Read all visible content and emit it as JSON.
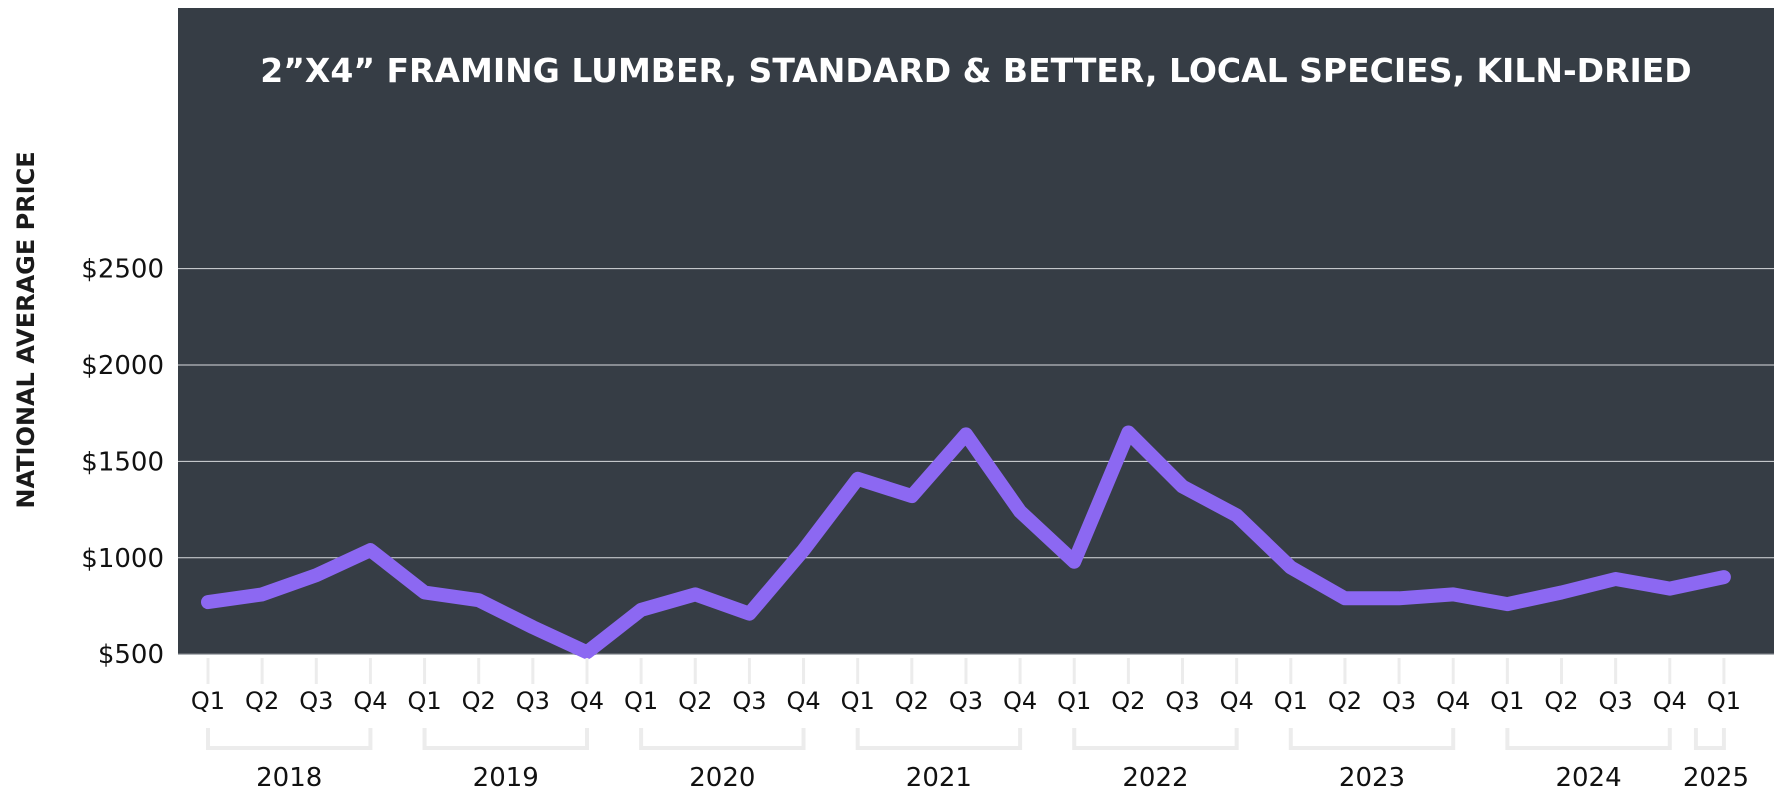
{
  "chart_data": {
    "type": "line",
    "title": "2”X4” FRAMING LUMBER, STANDARD & BETTER, LOCAL SPECIES, KILN-DRIED",
    "xlabel": "",
    "ylabel": "NATIONAL AVERAGE PRICE",
    "ylim": [
      0,
      2500
    ],
    "y_ticks": [
      500,
      1000,
      1500,
      2000,
      2500
    ],
    "y_tick_labels": [
      "$500",
      "$1000",
      "$1500",
      "$2000",
      "$2500"
    ],
    "grid": true,
    "legend": "none",
    "categories": [
      "Q1",
      "Q2",
      "Q3",
      "Q4",
      "Q1",
      "Q2",
      "Q3",
      "Q4",
      "Q1",
      "Q2",
      "Q3",
      "Q4",
      "Q1",
      "Q2",
      "Q3",
      "Q4",
      "Q1",
      "Q2",
      "Q3",
      "Q4",
      "Q1",
      "Q2",
      "Q3",
      "Q4",
      "Q1",
      "Q2",
      "Q3",
      "Q4",
      "Q1"
    ],
    "years": [
      {
        "label": "2018",
        "quarters": 4
      },
      {
        "label": "2019",
        "quarters": 4
      },
      {
        "label": "2020",
        "quarters": 4
      },
      {
        "label": "2021",
        "quarters": 4
      },
      {
        "label": "2022",
        "quarters": 4
      },
      {
        "label": "2023",
        "quarters": 4
      },
      {
        "label": "2024",
        "quarters": 4
      },
      {
        "label": "2025",
        "quarters": 1
      }
    ],
    "series": [
      {
        "values": [
          770,
          810,
          910,
          1040,
          820,
          780,
          640,
          510,
          730,
          810,
          710,
          1040,
          1410,
          1320,
          1640,
          1240,
          980,
          1650,
          1370,
          1220,
          950,
          790,
          790,
          810,
          760,
          820,
          890,
          840,
          900
        ]
      }
    ],
    "colors": {
      "plot_background": "#363d45",
      "line": "#8c68f2",
      "grid": "#d9dbde",
      "bracket": "#ececec"
    }
  }
}
